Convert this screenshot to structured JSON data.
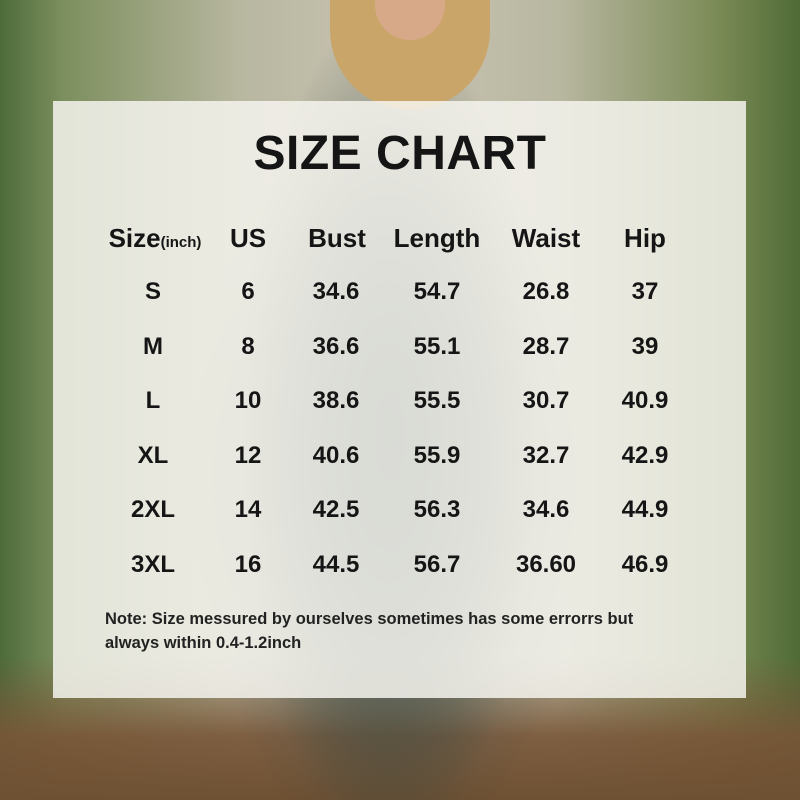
{
  "title": "SIZE CHART",
  "headers": {
    "size": "Size",
    "size_unit": "(inch)",
    "us": "US",
    "bust": "Bust",
    "length": "Length",
    "waist": "Waist",
    "hip": "Hip"
  },
  "rows": [
    [
      "S",
      "6",
      "34.6",
      "54.7",
      "26.8",
      "37"
    ],
    [
      "M",
      "8",
      "36.6",
      "55.1",
      "28.7",
      "39"
    ],
    [
      "L",
      "10",
      "38.6",
      "55.5",
      "30.7",
      "40.9"
    ],
    [
      "XL",
      "12",
      "40.6",
      "55.9",
      "32.7",
      "42.9"
    ],
    [
      "2XL",
      "14",
      "42.5",
      "56.3",
      "34.6",
      "44.9"
    ],
    [
      "3XL",
      "16",
      "44.5",
      "56.7",
      "36.60",
      "46.9"
    ]
  ],
  "note": "Note:  Size messured by ourselves sometimes has some errorrs but always within 0.4-1.2inch"
}
